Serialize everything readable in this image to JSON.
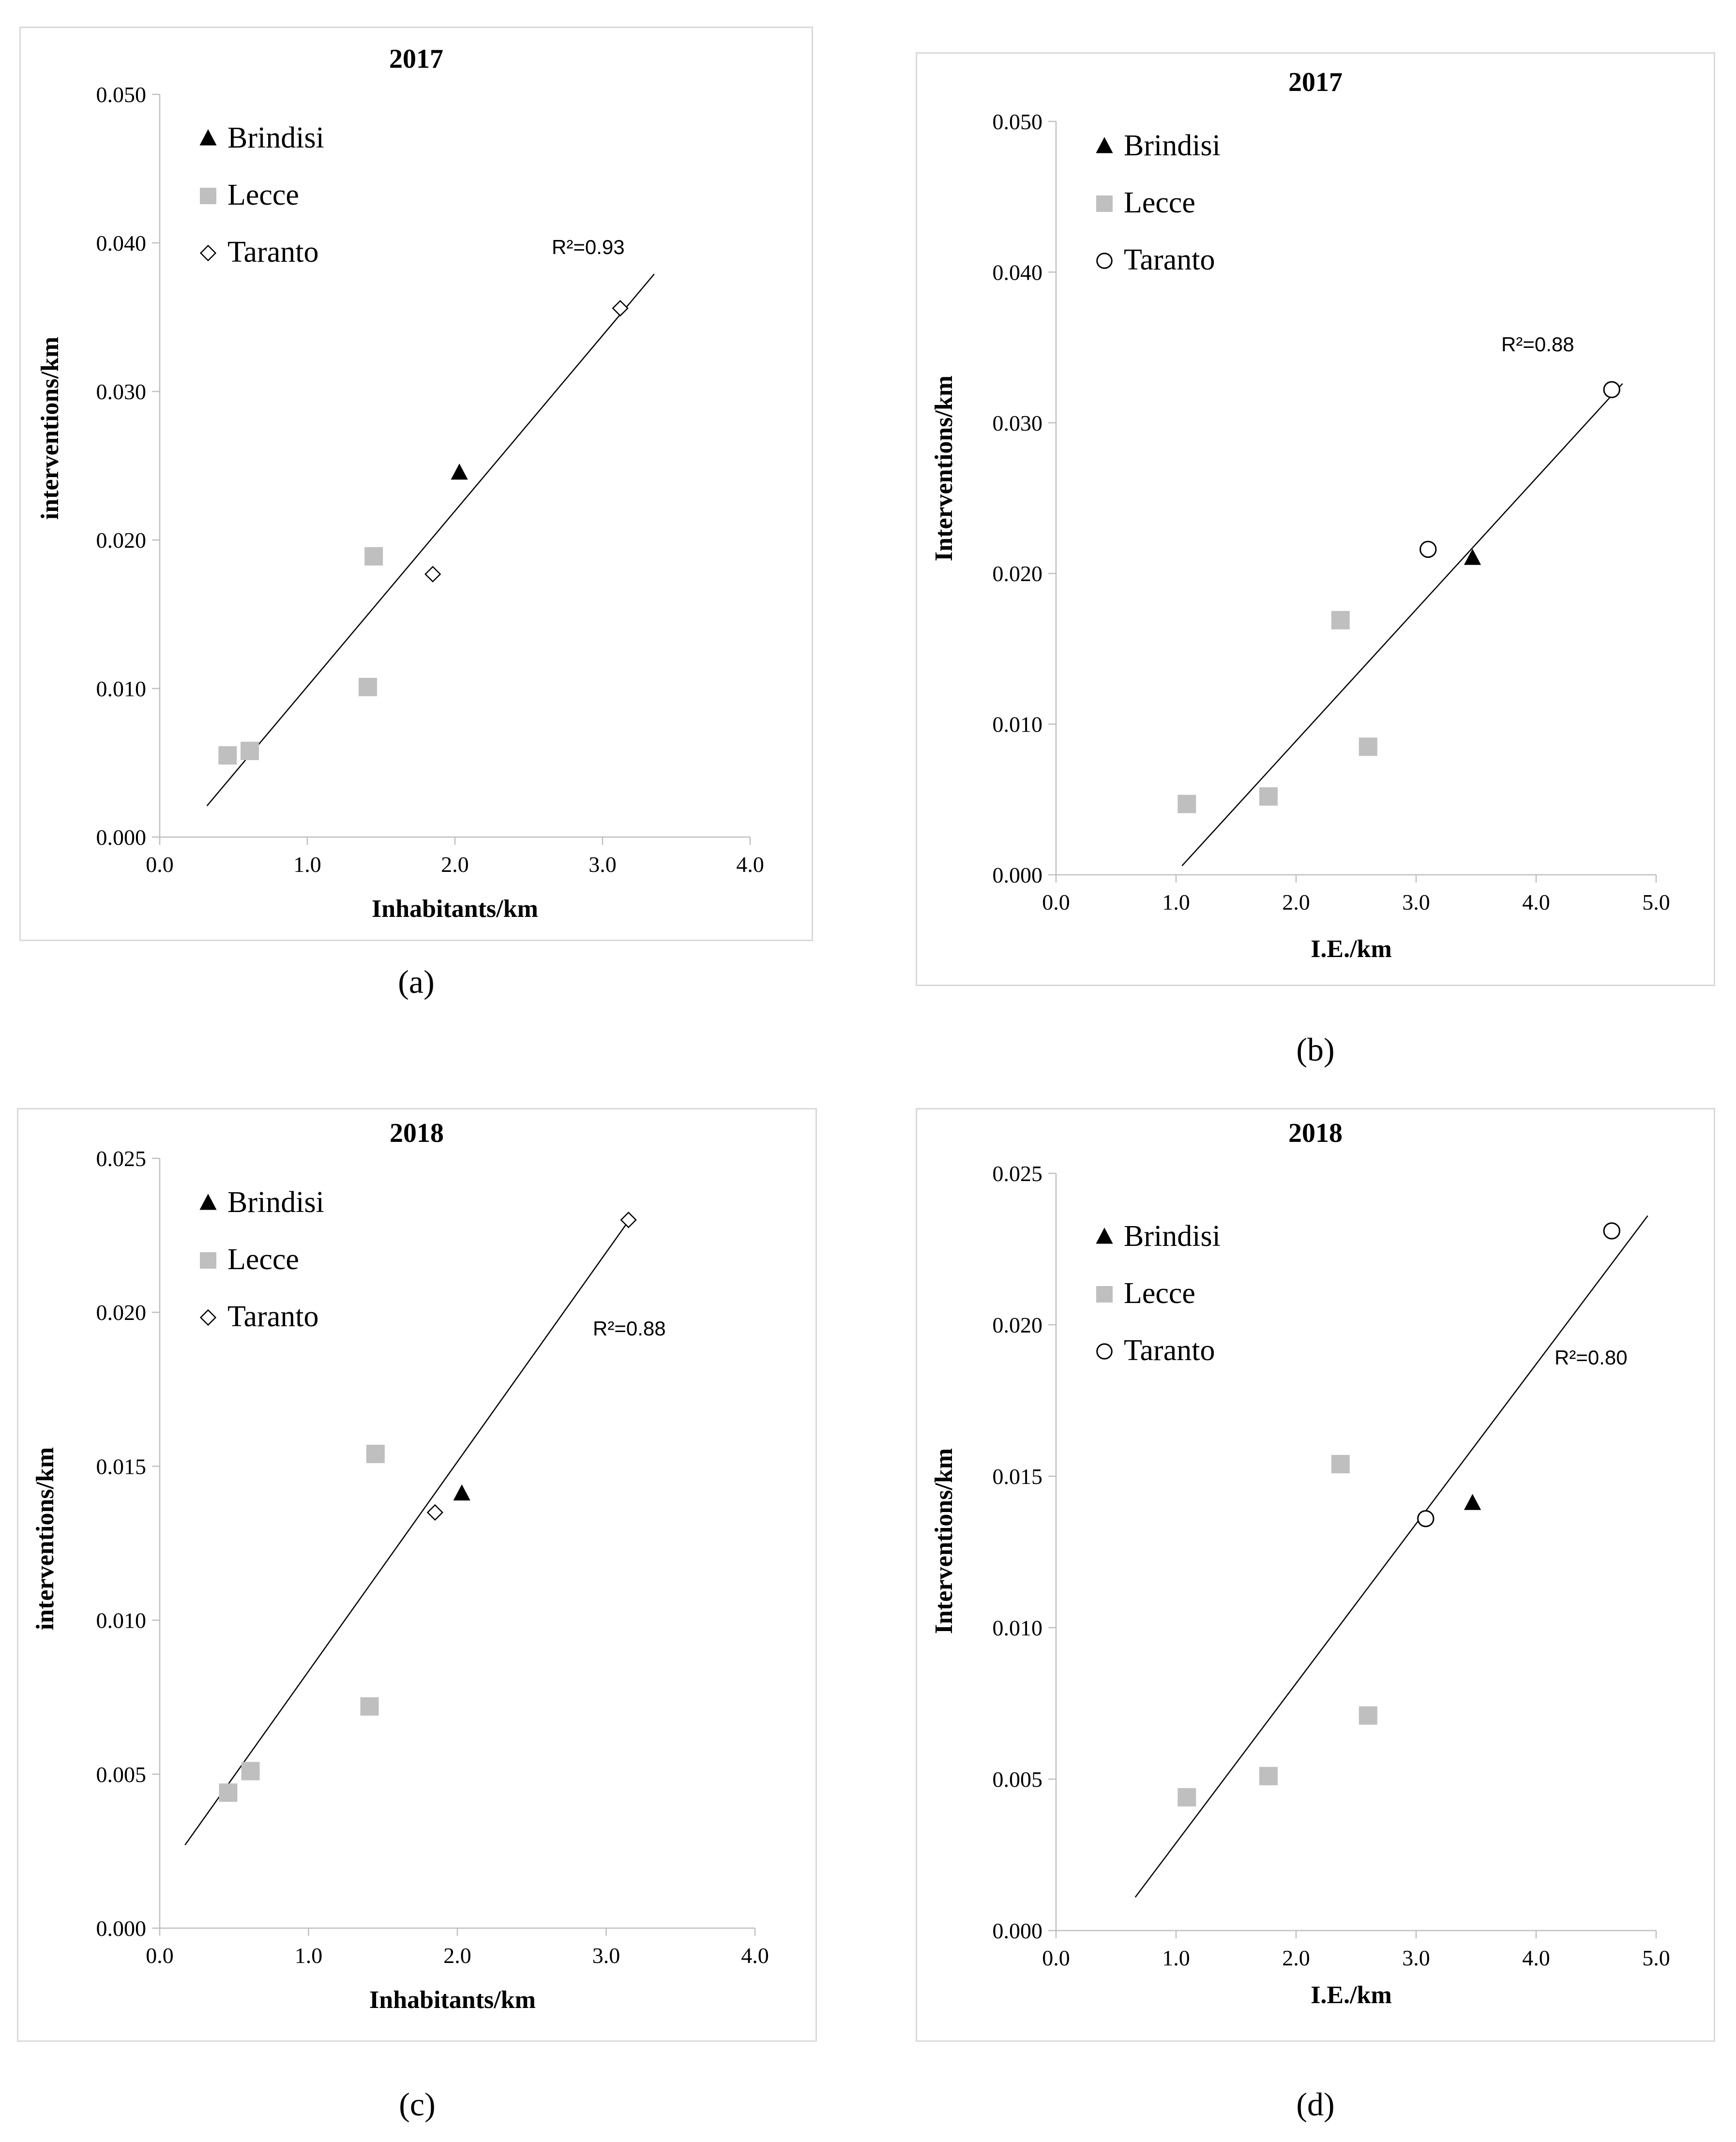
{
  "chart_data": [
    {
      "type": "scatter",
      "caption": "(a)",
      "title": "2017",
      "xlabel": "Inhabitants/km",
      "ylabel": "interventions/km",
      "xlim": [
        0,
        4
      ],
      "ylim": [
        0,
        0.05
      ],
      "xticks": [
        "0.0",
        "1.0",
        "2.0",
        "3.0",
        "4.0"
      ],
      "yticks": [
        "0.000",
        "0.010",
        "0.020",
        "0.030",
        "0.040",
        "0.050"
      ],
      "legend": [
        "Brindisi",
        "Lecce",
        "Taranto"
      ],
      "taranto_marker": "diamond",
      "r2": "R²=0.93",
      "series": [
        {
          "name": "Brindisi",
          "marker": "triangle",
          "color": "#000000",
          "points": [
            [
              2.03,
              0.0245
            ]
          ]
        },
        {
          "name": "Lecce",
          "marker": "square",
          "color": "#bfbfbf",
          "points": [
            [
              0.46,
              0.0055
            ],
            [
              0.61,
              0.0058
            ],
            [
              1.41,
              0.0101
            ],
            [
              1.45,
              0.0189
            ]
          ]
        },
        {
          "name": "Taranto",
          "marker": "diamond",
          "color": "#000000",
          "points": [
            [
              1.85,
              0.0177
            ],
            [
              3.12,
              0.0356
            ]
          ]
        }
      ],
      "trendline": [
        [
          0.32,
          0.0021
        ],
        [
          3.35,
          0.0379
        ]
      ]
    },
    {
      "type": "scatter",
      "caption": "(b)",
      "title": "2017",
      "xlabel": "I.E./km",
      "ylabel": "Interventions/km",
      "xlim": [
        0,
        5
      ],
      "ylim": [
        0,
        0.05
      ],
      "xticks": [
        "0.0",
        "1.0",
        "2.0",
        "3.0",
        "4.0",
        "5.0"
      ],
      "yticks": [
        "0.000",
        "0.010",
        "0.020",
        "0.030",
        "0.040",
        "0.050"
      ],
      "legend": [
        "Brindisi",
        "Lecce",
        "Taranto"
      ],
      "taranto_marker": "circle",
      "r2": "R²=0.88",
      "series": [
        {
          "name": "Brindisi",
          "marker": "triangle",
          "color": "#000000",
          "points": [
            [
              3.47,
              0.021
            ]
          ]
        },
        {
          "name": "Lecce",
          "marker": "square",
          "color": "#bfbfbf",
          "points": [
            [
              1.09,
              0.0047
            ],
            [
              1.77,
              0.0052
            ],
            [
              2.37,
              0.0169
            ],
            [
              2.6,
              0.0085
            ]
          ]
        },
        {
          "name": "Taranto",
          "marker": "circle",
          "color": "#000000",
          "points": [
            [
              3.1,
              0.0216
            ],
            [
              4.63,
              0.0322
            ]
          ]
        }
      ],
      "trendline": [
        [
          1.05,
          0.0006
        ],
        [
          4.72,
          0.0326
        ]
      ]
    },
    {
      "type": "scatter",
      "caption": "(c)",
      "title": "2018",
      "xlabel": "Inhabitants/km",
      "ylabel": "interventions/km",
      "xlim": [
        0,
        4
      ],
      "ylim": [
        0,
        0.025
      ],
      "xticks": [
        "0.0",
        "1.0",
        "2.0",
        "3.0",
        "4.0"
      ],
      "yticks": [
        "0.000",
        "0.005",
        "0.010",
        "0.015",
        "0.020",
        "0.025"
      ],
      "legend": [
        "Brindisi",
        "Lecce",
        "Taranto"
      ],
      "taranto_marker": "diamond",
      "r2": "R²=0.88",
      "series": [
        {
          "name": "Brindisi",
          "marker": "triangle",
          "color": "#000000",
          "points": [
            [
              2.03,
              0.0141
            ]
          ]
        },
        {
          "name": "Lecce",
          "marker": "square",
          "color": "#bfbfbf",
          "points": [
            [
              0.46,
              0.0044
            ],
            [
              0.61,
              0.0051
            ],
            [
              1.41,
              0.0072
            ],
            [
              1.45,
              0.0154
            ]
          ]
        },
        {
          "name": "Taranto",
          "marker": "diamond",
          "color": "#000000",
          "points": [
            [
              1.85,
              0.0135
            ],
            [
              3.15,
              0.023
            ]
          ]
        }
      ],
      "trendline": [
        [
          0.17,
          0.0027
        ],
        [
          3.17,
          0.0231
        ]
      ]
    },
    {
      "type": "scatter",
      "caption": "(d)",
      "title": "2018",
      "xlabel": "I.E./km",
      "ylabel": "Interventions/km",
      "xlim": [
        0,
        5
      ],
      "ylim": [
        0,
        0.025
      ],
      "xticks": [
        "0.0",
        "1.0",
        "2.0",
        "3.0",
        "4.0",
        "5.0"
      ],
      "yticks": [
        "0.000",
        "0.005",
        "0.010",
        "0.015",
        "0.020",
        "0.025"
      ],
      "legend": [
        "Brindisi",
        "Lecce",
        "Taranto"
      ],
      "taranto_marker": "circle",
      "r2": "R²=0.80",
      "series": [
        {
          "name": "Brindisi",
          "marker": "triangle",
          "color": "#000000",
          "points": [
            [
              3.47,
              0.0141
            ]
          ]
        },
        {
          "name": "Lecce",
          "marker": "square",
          "color": "#bfbfbf",
          "points": [
            [
              1.09,
              0.0044
            ],
            [
              1.77,
              0.0051
            ],
            [
              2.37,
              0.0154
            ],
            [
              2.6,
              0.0071
            ]
          ]
        },
        {
          "name": "Taranto",
          "marker": "circle",
          "color": "#000000",
          "points": [
            [
              3.08,
              0.0136
            ],
            [
              4.63,
              0.0231
            ]
          ]
        }
      ],
      "trendline": [
        [
          0.66,
          0.0011
        ],
        [
          4.93,
          0.0236
        ]
      ]
    }
  ]
}
